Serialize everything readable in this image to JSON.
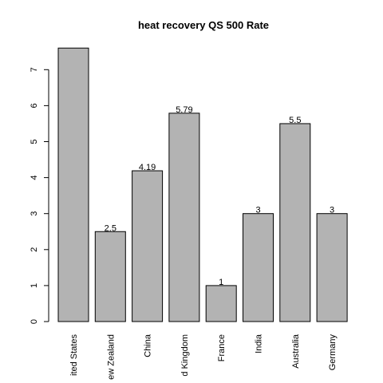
{
  "chart_data": {
    "type": "bar",
    "title": "heat recovery QS 500 Rate",
    "categories": [
      "United States",
      "New Zealand",
      "China",
      "United Kingdom",
      "France",
      "India",
      "Australia",
      "Germany"
    ],
    "category_labels_visible": [
      "ited States",
      "ew Zealand",
      "China",
      "d Kingdom",
      "France",
      "India",
      "Australia",
      "Germany"
    ],
    "values": [
      7.6,
      2.5,
      4.19,
      5.79,
      1,
      3,
      5.5,
      3
    ],
    "data_labels": [
      "",
      "2.5",
      "4.19",
      "5.79",
      "1",
      "3",
      "5.5",
      "3"
    ],
    "yticks": [
      0,
      1,
      2,
      3,
      4,
      5,
      6,
      7
    ],
    "ylim": [
      0,
      7.6
    ],
    "xlabel": "",
    "ylabel": "",
    "bar_color": "#b3b3b3",
    "grid": false
  }
}
